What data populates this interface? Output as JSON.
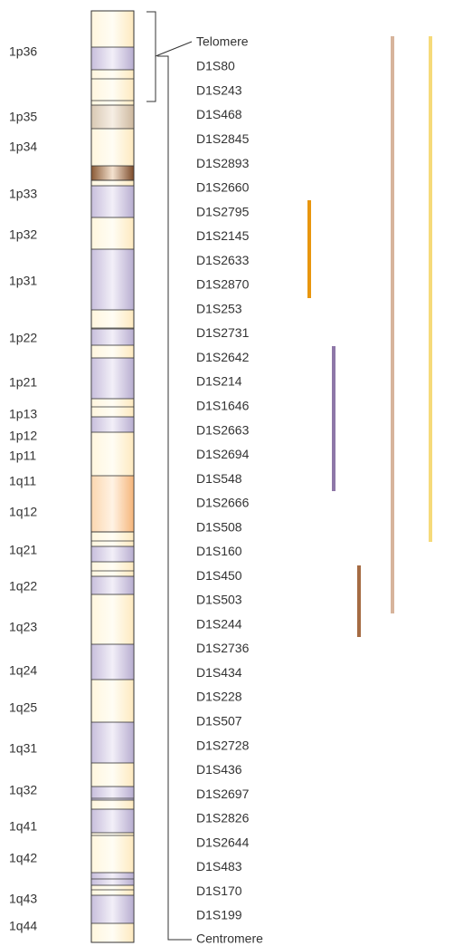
{
  "bands": [
    "1p36",
    "1p35",
    "1p34",
    "1p33",
    "1p32",
    "1p31",
    "1p22",
    "1p21",
    "1p13",
    "1p12",
    "1p11",
    "1q11",
    "1q12",
    "1q21",
    "1q22",
    "1q23",
    "1q24",
    "1q25",
    "1q31",
    "1q32",
    "1q41",
    "1q42",
    "1q43",
    "1q44"
  ],
  "telomere": "Telomere",
  "markers": [
    "D1S80",
    "D1S243",
    "D1S468",
    "D1S2845",
    "D1S2893",
    "D1S2660",
    "D1S2795",
    "D1S2145",
    "D1S2633",
    "D1S2870",
    "D1S253",
    "D1S2731",
    "D1S2642",
    "D1S214",
    "D1S1646",
    "D1S2663",
    "D1S2694",
    "D1S548",
    "D1S2666",
    "D1S508",
    "D1S160",
    "D1S450",
    "D1S503",
    "D1S244",
    "D1S2736",
    "D1S434",
    "D1S228",
    "D1S507",
    "D1S2728",
    "D1S436",
    "D1S2697",
    "D1S2826",
    "D1S2644",
    "D1S483",
    "D1S170",
    "D1S199"
  ],
  "centromere": "Centromere"
}
